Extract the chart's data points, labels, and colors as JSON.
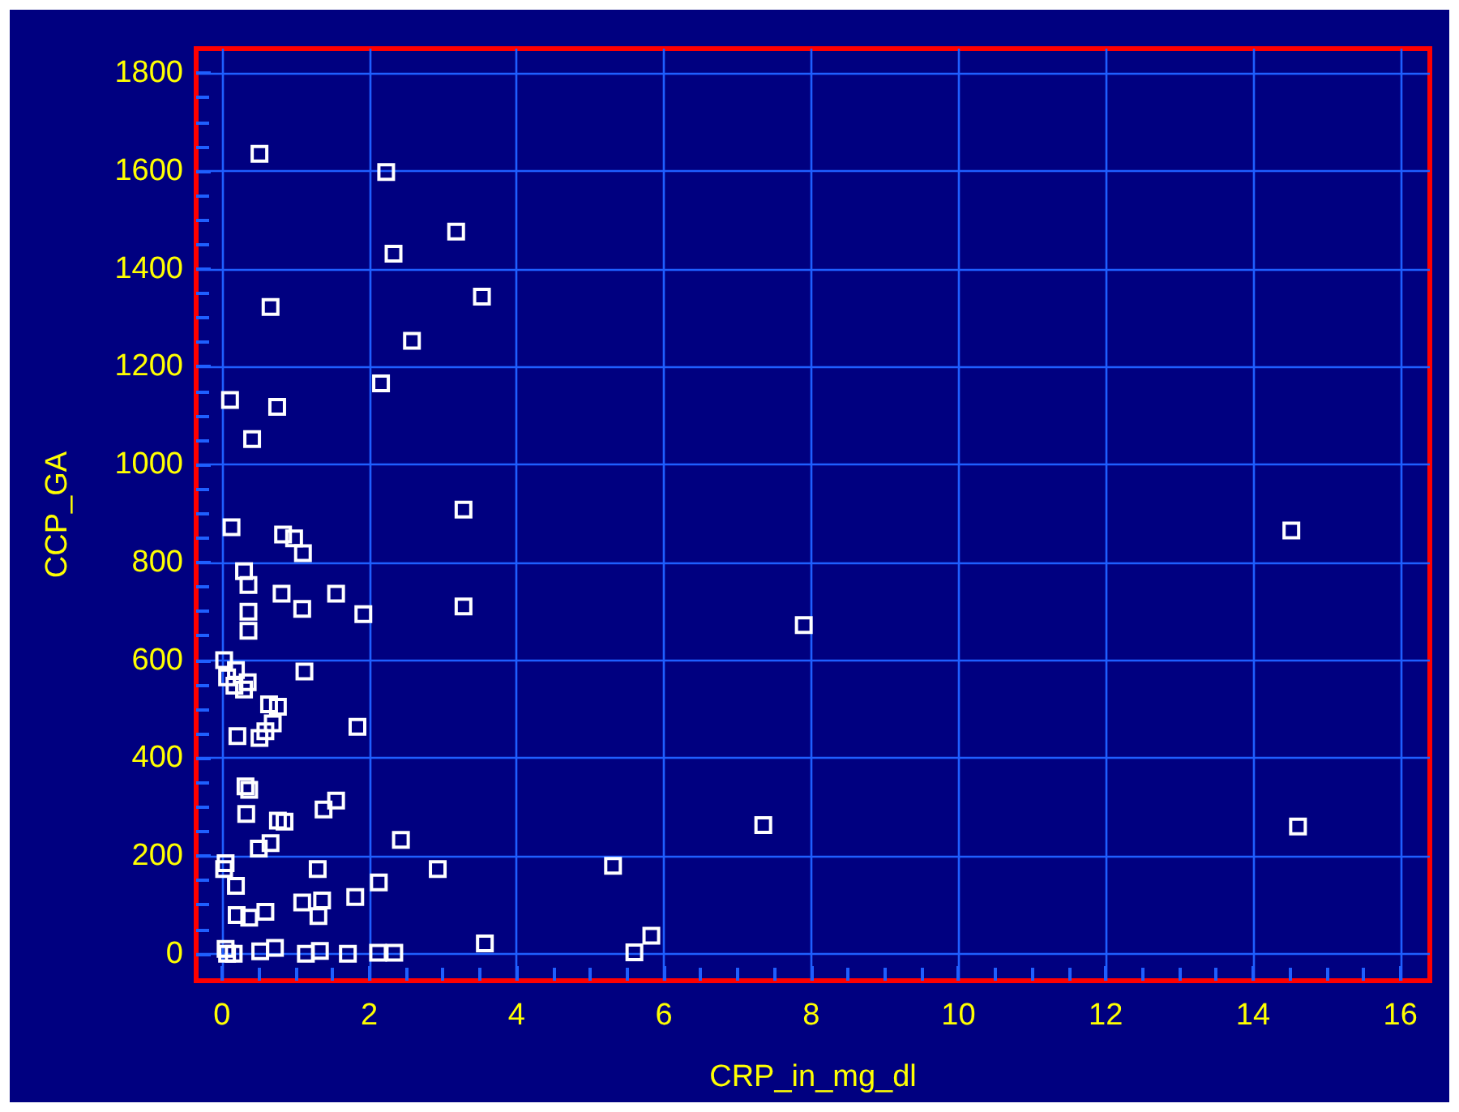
{
  "chart_data": {
    "type": "scatter",
    "xlabel": "CRP_in_mg_dl",
    "ylabel": "CCP_GA",
    "color": "#ffffff",
    "marker": "square",
    "grid": true,
    "xlim": [
      -0.35,
      16.4
    ],
    "ylim": [
      -55,
      1850
    ],
    "xticks": [
      0,
      {
        "value": 0.5,
        "label": null
      },
      {
        "value": 1,
        "label": null
      },
      {
        "value": 1.5,
        "label": null
      },
      2,
      {
        "value": 2.5,
        "label": null
      },
      {
        "value": 3,
        "label": null
      },
      {
        "value": 3.5,
        "label": null
      },
      4,
      {
        "value": 4.5,
        "label": null
      },
      {
        "value": 5,
        "label": null
      },
      {
        "value": 5.5,
        "label": null
      },
      6,
      {
        "value": 6.5,
        "label": null
      },
      {
        "value": 7,
        "label": null
      },
      {
        "value": 7.5,
        "label": null
      },
      8,
      {
        "value": 8.5,
        "label": null
      },
      {
        "value": 9,
        "label": null
      },
      {
        "value": 9.5,
        "label": null
      },
      10,
      {
        "value": 10.5,
        "label": null
      },
      {
        "value": 11,
        "label": null
      },
      {
        "value": 11.5,
        "label": null
      },
      12,
      {
        "value": 12.5,
        "label": null
      },
      {
        "value": 13,
        "label": null
      },
      {
        "value": 13.5,
        "label": null
      },
      14,
      {
        "value": 14.5,
        "label": null
      },
      {
        "value": 15,
        "label": null
      },
      {
        "value": 15.5,
        "label": null
      },
      16
    ],
    "yticks": [
      0,
      {
        "value": 50,
        "label": null
      },
      {
        "value": 100,
        "label": null
      },
      {
        "value": 150,
        "label": null
      },
      200,
      {
        "value": 250,
        "label": null
      },
      {
        "value": 300,
        "label": null
      },
      {
        "value": 350,
        "label": null
      },
      400,
      {
        "value": 450,
        "label": null
      },
      {
        "value": 500,
        "label": null
      },
      {
        "value": 550,
        "label": null
      },
      600,
      {
        "value": 650,
        "label": null
      },
      {
        "value": 700,
        "label": null
      },
      {
        "value": 750,
        "label": null
      },
      800,
      {
        "value": 850,
        "label": null
      },
      {
        "value": 900,
        "label": null
      },
      {
        "value": 950,
        "label": null
      },
      1000,
      {
        "value": 1050,
        "label": null
      },
      {
        "value": 1100,
        "label": null
      },
      {
        "value": 1150,
        "label": null
      },
      1200,
      {
        "value": 1250,
        "label": null
      },
      {
        "value": 1300,
        "label": null
      },
      {
        "value": 1350,
        "label": null
      },
      1400,
      {
        "value": 1450,
        "label": null
      },
      {
        "value": 1500,
        "label": null
      },
      {
        "value": 1550,
        "label": null
      },
      1600,
      {
        "value": 1650,
        "label": null
      },
      {
        "value": 1700,
        "label": null
      },
      {
        "value": 1750,
        "label": null
      },
      1800
    ],
    "x": [
      0.51,
      2.23,
      3.18,
      2.33,
      0.66,
      3.53,
      2.58,
      2.16,
      0.11,
      0.75,
      0.41,
      3.28,
      0.13,
      0.83,
      0.98,
      1.1,
      0.3,
      0.36,
      0.81,
      1.55,
      1.09,
      3.28,
      1.92,
      0.36,
      0.36,
      1.12,
      0.03,
      0.07,
      0.19,
      0.17,
      0.35,
      0.3,
      0.64,
      0.76,
      0.69,
      0.59,
      0.51,
      0.21,
      1.84,
      0.32,
      0.37,
      0.33,
      1.38,
      1.55,
      0.76,
      0.85,
      0.66,
      0.5,
      2.43,
      0.05,
      0.03,
      1.3,
      2.93,
      0.19,
      2.13,
      1.81,
      1.09,
      1.36,
      0.59,
      0.2,
      0.37,
      1.31,
      0.05,
      0.07,
      0.16,
      0.52,
      0.72,
      1.14,
      1.33,
      1.71,
      2.12,
      2.34,
      3.57,
      7.9,
      7.35,
      5.31,
      5.83,
      5.6,
      14.52,
      14.61
    ],
    "values": [
      1635,
      1598,
      1476,
      1431,
      1322,
      1343,
      1253,
      1166,
      1132,
      1118,
      1052,
      908,
      872,
      857,
      849,
      819,
      782,
      754,
      736,
      736,
      705,
      710,
      694,
      699,
      660,
      577,
      600,
      565,
      580,
      548,
      555,
      540,
      510,
      505,
      471,
      455,
      441,
      445,
      464,
      342,
      335,
      286,
      295,
      313,
      272,
      270,
      226,
      215,
      233,
      185,
      173,
      173,
      173,
      139,
      146,
      116,
      105,
      109,
      86,
      79,
      74,
      77,
      10,
      0,
      0,
      5,
      12,
      0,
      6,
      0,
      2,
      2,
      21,
      672,
      263,
      180,
      37,
      3,
      865,
      260
    ]
  }
}
